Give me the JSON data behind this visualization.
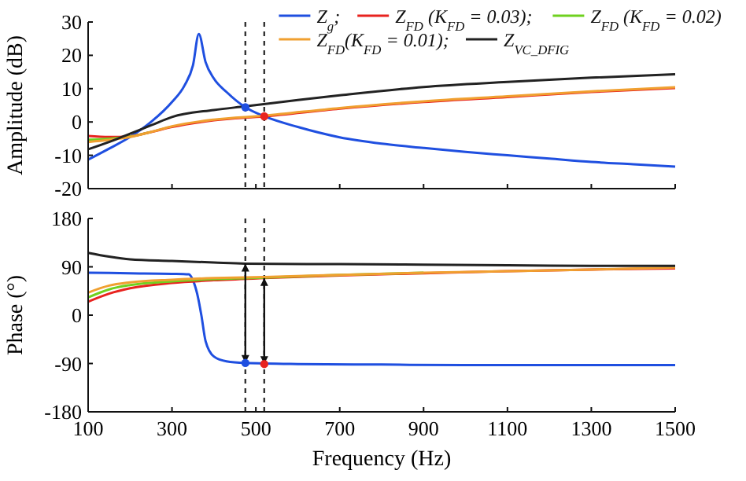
{
  "chart_data": [
    {
      "type": "line",
      "ylabel": "Amplitude (dB)",
      "xlim": [
        100,
        1500
      ],
      "xticks": [
        100,
        300,
        500,
        700,
        900,
        1100,
        1300,
        1500
      ],
      "ylim": [
        -20,
        30
      ],
      "yticks": [
        -20,
        -10,
        0,
        10,
        20,
        30
      ],
      "tick_labels": "y",
      "legend": "top right",
      "grid": false,
      "marker": "none",
      "line_style": "solid",
      "ref_lines": [
        {
          "axis": "x",
          "value": 475,
          "color": "#333333",
          "line_style": "dashed"
        },
        {
          "axis": "x",
          "value": 520,
          "color": "#333333",
          "line_style": "dashed"
        }
      ],
      "series": [
        {
          "name": "Z$_{g}$;",
          "color": "#1f4fe0",
          "x": [
            100,
            150,
            200,
            250,
            300,
            330,
            350,
            364,
            380,
            400,
            430,
            475,
            520,
            600,
            700,
            800,
            900,
            1000,
            1100,
            1200,
            1300,
            1400,
            1500
          ],
          "values": [
            -11.3,
            -8,
            -4.5,
            0,
            6,
            11,
            17,
            26.4,
            18,
            13,
            9,
            4.4,
            1.7,
            -1.5,
            -4.6,
            -6.5,
            -7.8,
            -9,
            -10,
            -11,
            -12,
            -12.7,
            -13.4
          ]
        },
        {
          "name": "Z$_{FD}$ (K$_{FD}$ = 0.03);",
          "color": "#e8231f",
          "x": [
            100,
            150,
            200,
            250,
            300,
            400,
            520,
            700,
            900,
            1100,
            1300,
            1500
          ],
          "values": [
            -4.2,
            -4.5,
            -4.3,
            -3,
            -1.5,
            0.5,
            1.7,
            4,
            6,
            7.5,
            9,
            10.2
          ]
        },
        {
          "name": "Z$_{FD}$ (K$_{FD}$ = 0.02)",
          "color": "#6fd11f",
          "x": [
            100,
            150,
            200,
            250
          ],
          "values": [
            -5.3,
            -5,
            -4.4,
            -3
          ]
        },
        {
          "name": "Z$_{FD}$(K$_{FD}$ = 0.01);",
          "color": "#f0a030",
          "x": [
            100,
            150,
            200,
            250,
            300,
            400,
            520,
            700,
            900,
            1100,
            1300,
            1500
          ],
          "values": [
            -6,
            -5.4,
            -4.5,
            -3,
            -1.3,
            0.7,
            1.9,
            4.2,
            6.2,
            7.7,
            9.2,
            10.4
          ]
        },
        {
          "name": "Z$_{VC_DFIG}$",
          "color": "#222222",
          "x": [
            100,
            150,
            200,
            250,
            300,
            400,
            475,
            600,
            700,
            900,
            1100,
            1300,
            1500
          ],
          "values": [
            -8.2,
            -6,
            -3.5,
            -1,
            1.5,
            3.6,
            4.7,
            6.6,
            8,
            10.5,
            12,
            13.3,
            14.3
          ]
        },
        {
          "type": "scatter",
          "marker": "circle",
          "x": [
            475,
            520
          ],
          "values": [
            4.4,
            1.7
          ],
          "colors": [
            "#1f4fe0",
            "#e8231f"
          ]
        }
      ]
    },
    {
      "type": "line",
      "xlabel": "Frequency (Hz)",
      "ylabel": "Phase (°)",
      "xlim": [
        100,
        1500
      ],
      "xticks": [
        100,
        300,
        500,
        700,
        900,
        1100,
        1300,
        1500
      ],
      "ylim": [
        -180,
        180
      ],
      "yticks": [
        -180,
        -90,
        0,
        90,
        180
      ],
      "grid": false,
      "marker": "none",
      "line_style": "solid",
      "ref_lines": [
        {
          "axis": "x",
          "value": 475,
          "color": "#333333",
          "line_style": "dashed"
        },
        {
          "axis": "x",
          "value": 520,
          "color": "#333333",
          "line_style": "dashed"
        }
      ],
      "series": [
        {
          "color": "#1f4fe0",
          "x": [
            100,
            200,
            300,
            340,
            350,
            360,
            370,
            380,
            400,
            430,
            475,
            600,
            800,
            1000,
            1500
          ],
          "values": [
            79,
            78,
            77,
            76,
            65,
            40,
            0,
            -48,
            -77,
            -86,
            -89,
            -91,
            -92,
            -93,
            -93
          ]
        },
        {
          "color": "#e8231f",
          "x": [
            100,
            150,
            200,
            300,
            400,
            520,
            700,
            900,
            1100,
            1300,
            1500
          ],
          "values": [
            25,
            40,
            50,
            60,
            65,
            69,
            74,
            78,
            82,
            85,
            87
          ]
        },
        {
          "color": "#6fd11f",
          "x": [
            100,
            150,
            200,
            300,
            400,
            520,
            700,
            900
          ],
          "values": [
            33,
            48,
            56,
            63,
            67,
            70,
            75,
            79
          ]
        },
        {
          "color": "#f0a030",
          "x": [
            100,
            150,
            200,
            300,
            400,
            520,
            700,
            900,
            1100,
            1300,
            1500
          ],
          "values": [
            42,
            55,
            61,
            66,
            69,
            71,
            75,
            79,
            82,
            85,
            89
          ]
        },
        {
          "color": "#222222",
          "x": [
            100,
            150,
            200,
            300,
            400,
            475,
            700,
            900,
            1100,
            1300,
            1500
          ],
          "values": [
            116,
            109,
            104,
            101,
            98,
            96,
            95,
            94,
            93,
            92,
            92
          ]
        },
        {
          "type": "scatter",
          "marker": "circle",
          "x": [
            475,
            520
          ],
          "values": [
            -89,
            -91
          ],
          "colors": [
            "#1f4fe0",
            "#e8231f"
          ],
          "errors": [
            [
              -89,
              96
            ],
            [
              -91,
              69
            ]
          ]
        }
      ]
    }
  ]
}
